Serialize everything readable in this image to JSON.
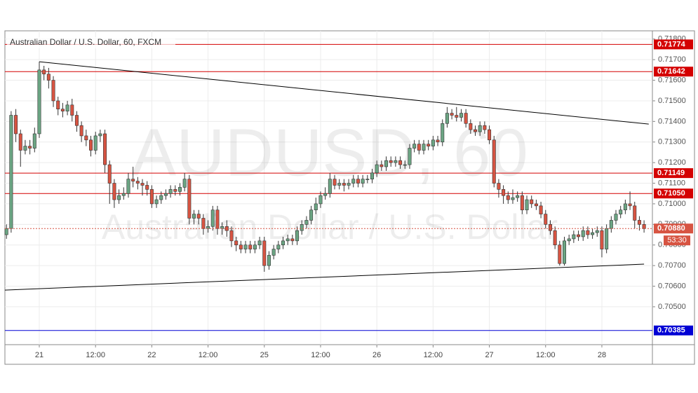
{
  "chart_data": {
    "type": "candlestick",
    "title": "Australian Dollar / U.S. Dollar, 60, FXCM",
    "watermark": "AUDUSD, 60",
    "watermark_subtitle": "Australian Dollar / U.S. Dollar",
    "up_color": "#6ba583",
    "down_color": "#d75442",
    "x": [
      -7,
      -6,
      -5,
      -4,
      -3,
      -2,
      -1,
      0,
      1,
      2,
      3,
      4,
      5,
      6,
      7,
      8,
      9,
      10,
      11,
      12,
      13,
      14,
      15,
      16,
      17,
      18,
      19,
      20,
      21,
      22,
      23,
      24,
      25,
      26,
      27,
      28,
      29,
      30,
      31,
      32,
      33,
      34,
      35,
      36,
      37,
      38,
      39,
      40,
      41,
      42,
      43,
      44,
      45,
      46,
      47,
      48,
      49,
      50,
      51,
      52,
      53,
      54,
      55,
      56,
      57,
      58,
      59,
      60,
      61,
      62,
      63,
      64,
      65,
      66,
      67,
      68,
      69,
      70,
      71,
      72,
      73,
      74,
      75,
      76,
      77,
      78,
      79,
      80,
      81,
      82,
      83,
      84,
      85,
      86,
      87,
      88,
      89,
      90,
      91,
      92,
      93,
      94,
      95,
      96,
      97,
      98,
      99,
      100,
      101,
      102,
      103,
      104,
      105,
      106,
      107,
      108,
      109,
      110,
      111,
      112,
      113,
      114,
      115,
      116,
      117,
      118,
      119,
      120,
      121,
      122,
      123,
      124,
      125,
      126,
      127,
      128,
      129
    ],
    "open": [
      0.7085,
      0.7088,
      0.7143,
      0.7134,
      0.7126,
      0.7128,
      0.7127,
      0.7134,
      0.7165,
      0.7163,
      0.716,
      0.715,
      0.7146,
      0.7145,
      0.7148,
      0.7143,
      0.7138,
      0.7133,
      0.7131,
      0.7126,
      0.7133,
      0.7134,
      0.7119,
      0.711,
      0.7102,
      0.7104,
      0.7105,
      0.7112,
      0.7111,
      0.711,
      0.7109,
      0.7107,
      0.71,
      0.7102,
      0.7104,
      0.7105,
      0.7107,
      0.7106,
      0.7108,
      0.7112,
      0.7093,
      0.7095,
      0.7093,
      0.7088,
      0.7089,
      0.7097,
      0.7088,
      0.7089,
      0.7087,
      0.7082,
      0.708,
      0.7078,
      0.708,
      0.7078,
      0.708,
      0.7082,
      0.707,
      0.7075,
      0.7078,
      0.708,
      0.7082,
      0.7083,
      0.7082,
      0.7087,
      0.709,
      0.7092,
      0.7097,
      0.71,
      0.7104,
      0.7105,
      0.7112,
      0.7109,
      0.711,
      0.7109,
      0.711,
      0.7112,
      0.711,
      0.7112,
      0.7112,
      0.7115,
      0.7119,
      0.7118,
      0.7121,
      0.712,
      0.7121,
      0.7119,
      0.7119,
      0.7127,
      0.7129,
      0.7126,
      0.7129,
      0.7128,
      0.7131,
      0.713,
      0.7139,
      0.7144,
      0.7143,
      0.7142,
      0.7144,
      0.7139,
      0.7136,
      0.7135,
      0.7138,
      0.7136,
      0.7131,
      0.711,
      0.7107,
      0.7104,
      0.7102,
      0.7103,
      0.7104,
      0.7097,
      0.7102,
      0.71,
      0.7099,
      0.7095,
      0.709,
      0.7087,
      0.708,
      0.7071,
      0.7082,
      0.7083,
      0.7085,
      0.7084,
      0.7087,
      0.7085,
      0.7086,
      0.7087,
      0.7078,
      0.7088,
      0.7092,
      0.7095,
      0.7097,
      0.71,
      0.7099,
      0.7092,
      0.709
    ],
    "high": [
      0.709,
      0.7145,
      0.7146,
      0.7136,
      0.7131,
      0.7131,
      0.7137,
      0.7169,
      0.7167,
      0.7166,
      0.7162,
      0.7152,
      0.7149,
      0.715,
      0.7151,
      0.7145,
      0.714,
      0.7136,
      0.7133,
      0.7135,
      0.7136,
      0.7136,
      0.7121,
      0.7112,
      0.7107,
      0.7108,
      0.7115,
      0.7118,
      0.7113,
      0.7112,
      0.7111,
      0.7109,
      0.7104,
      0.7106,
      0.7107,
      0.7109,
      0.7109,
      0.711,
      0.7115,
      0.7114,
      0.7097,
      0.7097,
      0.7095,
      0.7092,
      0.7099,
      0.7099,
      0.7091,
      0.7092,
      0.7089,
      0.7084,
      0.7082,
      0.7082,
      0.7082,
      0.7082,
      0.7084,
      0.7084,
      0.7077,
      0.708,
      0.7082,
      0.7084,
      0.7085,
      0.7085,
      0.7089,
      0.7092,
      0.7094,
      0.7099,
      0.7103,
      0.7106,
      0.7108,
      0.7115,
      0.7114,
      0.7112,
      0.7112,
      0.7112,
      0.7114,
      0.7114,
      0.7114,
      0.7114,
      0.7117,
      0.7121,
      0.7121,
      0.7123,
      0.7123,
      0.7123,
      0.7123,
      0.7121,
      0.7129,
      0.7131,
      0.7131,
      0.7131,
      0.7131,
      0.7133,
      0.7133,
      0.7141,
      0.7147,
      0.7146,
      0.7147,
      0.7146,
      0.7146,
      0.7141,
      0.7138,
      0.714,
      0.714,
      0.7138,
      0.7133,
      0.7112,
      0.7109,
      0.7106,
      0.7107,
      0.7106,
      0.7106,
      0.7104,
      0.7104,
      0.7102,
      0.7101,
      0.7097,
      0.7092,
      0.7089,
      0.7082,
      0.7084,
      0.7085,
      0.7087,
      0.7087,
      0.7089,
      0.7089,
      0.7088,
      0.7089,
      0.7089,
      0.709,
      0.7094,
      0.7097,
      0.7099,
      0.7102,
      0.7106,
      0.7101,
      0.7094,
      0.7092
    ],
    "low": [
      0.7083,
      0.7086,
      0.713,
      0.7118,
      0.7124,
      0.7124,
      0.7125,
      0.7132,
      0.716,
      0.7156,
      0.7147,
      0.7143,
      0.7142,
      0.7143,
      0.714,
      0.7135,
      0.713,
      0.7128,
      0.7123,
      0.7124,
      0.713,
      0.7115,
      0.71,
      0.7098,
      0.71,
      0.7102,
      0.7103,
      0.7108,
      0.7107,
      0.7104,
      0.7104,
      0.7098,
      0.7098,
      0.71,
      0.7102,
      0.7103,
      0.7104,
      0.7104,
      0.7106,
      0.709,
      0.709,
      0.709,
      0.7085,
      0.7086,
      0.7087,
      0.7085,
      0.7085,
      0.7084,
      0.7079,
      0.7077,
      0.7076,
      0.7076,
      0.7076,
      0.7076,
      0.7078,
      0.7067,
      0.7068,
      0.7073,
      0.7076,
      0.7078,
      0.708,
      0.708,
      0.708,
      0.7085,
      0.7088,
      0.709,
      0.7095,
      0.7098,
      0.7102,
      0.7103,
      0.7107,
      0.7107,
      0.7106,
      0.7107,
      0.7108,
      0.7108,
      0.7108,
      0.711,
      0.711,
      0.7113,
      0.7116,
      0.7116,
      0.7118,
      0.7118,
      0.7117,
      0.7117,
      0.7117,
      0.7125,
      0.7124,
      0.7124,
      0.7126,
      0.7126,
      0.7128,
      0.7128,
      0.7137,
      0.7141,
      0.714,
      0.714,
      0.7137,
      0.7134,
      0.7133,
      0.7133,
      0.7134,
      0.7129,
      0.7108,
      0.7103,
      0.71,
      0.71,
      0.71,
      0.7101,
      0.7095,
      0.7095,
      0.7098,
      0.7097,
      0.7093,
      0.7088,
      0.7085,
      0.7078,
      0.707,
      0.707,
      0.708,
      0.7081,
      0.7082,
      0.7082,
      0.7083,
      0.7083,
      0.7084,
      0.7074,
      0.7076,
      0.7086,
      0.709,
      0.7093,
      0.7095,
      0.7097,
      0.7088,
      0.7087,
      0.7086
    ],
    "close": [
      0.7088,
      0.7143,
      0.7134,
      0.7126,
      0.7128,
      0.7127,
      0.7134,
      0.7165,
      0.7163,
      0.716,
      0.715,
      0.7146,
      0.7145,
      0.7148,
      0.7143,
      0.7138,
      0.7133,
      0.7131,
      0.7126,
      0.7133,
      0.7134,
      0.7119,
      0.711,
      0.7102,
      0.7104,
      0.7105,
      0.7112,
      0.7111,
      0.711,
      0.7109,
      0.7107,
      0.71,
      0.7102,
      0.7104,
      0.7105,
      0.7107,
      0.7106,
      0.7108,
      0.7112,
      0.7093,
      0.7095,
      0.7093,
      0.7088,
      0.7089,
      0.7097,
      0.7088,
      0.7089,
      0.7087,
      0.7082,
      0.708,
      0.7078,
      0.708,
      0.7078,
      0.708,
      0.7082,
      0.707,
      0.7075,
      0.7078,
      0.708,
      0.7082,
      0.7083,
      0.7082,
      0.7087,
      0.709,
      0.7092,
      0.7097,
      0.71,
      0.7104,
      0.7105,
      0.7112,
      0.7109,
      0.711,
      0.7109,
      0.711,
      0.7112,
      0.711,
      0.7112,
      0.7112,
      0.7115,
      0.7119,
      0.7118,
      0.7121,
      0.712,
      0.7121,
      0.7119,
      0.7119,
      0.7127,
      0.7129,
      0.7126,
      0.7129,
      0.7128,
      0.7131,
      0.713,
      0.7139,
      0.7144,
      0.7143,
      0.7142,
      0.7144,
      0.7139,
      0.7136,
      0.7135,
      0.7138,
      0.7136,
      0.7131,
      0.711,
      0.7107,
      0.7104,
      0.7102,
      0.7103,
      0.7104,
      0.7097,
      0.7102,
      0.71,
      0.7099,
      0.7095,
      0.709,
      0.7087,
      0.708,
      0.7071,
      0.7082,
      0.7083,
      0.7085,
      0.7084,
      0.7087,
      0.7085,
      0.7086,
      0.7087,
      0.7078,
      0.7088,
      0.7092,
      0.7095,
      0.7097,
      0.71,
      0.7099,
      0.7092,
      0.709,
      0.7088
    ],
    "xlim": [
      -7.33,
      130.78
    ],
    "xticks": [
      {
        "value": 0,
        "label": "21"
      },
      {
        "value": 12,
        "label": "12:00"
      },
      {
        "value": 24,
        "label": "22"
      },
      {
        "value": 36,
        "label": "12:00"
      },
      {
        "value": 48,
        "label": "25"
      },
      {
        "value": 60,
        "label": "12:00"
      },
      {
        "value": 72,
        "label": "26"
      },
      {
        "value": 84,
        "label": "12:00"
      },
      {
        "value": 96,
        "label": "27"
      },
      {
        "value": 108,
        "label": "12:00"
      },
      {
        "value": 120,
        "label": "28"
      }
    ],
    "ylim": [
      0.70316,
      0.7184
    ],
    "yticks": [
      {
        "value": 0.718,
        "label": "0.71800"
      },
      {
        "value": 0.717,
        "label": "0.71700"
      },
      {
        "value": 0.716,
        "label": "0.71600"
      },
      {
        "value": 0.715,
        "label": "0.71500"
      },
      {
        "value": 0.714,
        "label": "0.71400"
      },
      {
        "value": 0.713,
        "label": "0.71300"
      },
      {
        "value": 0.712,
        "label": "0.71200"
      },
      {
        "value": 0.711,
        "label": "0.71100"
      },
      {
        "value": 0.71,
        "label": "0.71000"
      },
      {
        "value": 0.709,
        "label": "0.70900"
      },
      {
        "value": 0.708,
        "label": "0.70800"
      },
      {
        "value": 0.707,
        "label": "0.70700"
      },
      {
        "value": 0.706,
        "label": "0.70600"
      },
      {
        "value": 0.705,
        "label": "0.70500"
      }
    ],
    "grid": true,
    "levels": [
      {
        "value": 0.71774,
        "label": "0.71774",
        "color": "#d40000"
      },
      {
        "value": 0.71642,
        "label": "0.71642",
        "color": "#d40000"
      },
      {
        "value": 0.71149,
        "label": "0.71149",
        "color": "#d40000"
      },
      {
        "value": 0.7105,
        "label": "0.71050",
        "color": "#d40000"
      },
      {
        "value": 0.70385,
        "label": "0.70385",
        "color": "#0000d4"
      }
    ],
    "price_line": {
      "value": 0.7088,
      "label": "0.70880",
      "color": "#d75442"
    },
    "countdown": "53:30",
    "trendlines": [
      {
        "x": [
          0,
          130
        ],
        "y": [
          0.7169,
          0.71387
        ],
        "color": "#000000"
      },
      {
        "x": [
          -7.33,
          129
        ],
        "y": [
          0.70581,
          0.70707
        ],
        "color": "#000000"
      }
    ]
  }
}
